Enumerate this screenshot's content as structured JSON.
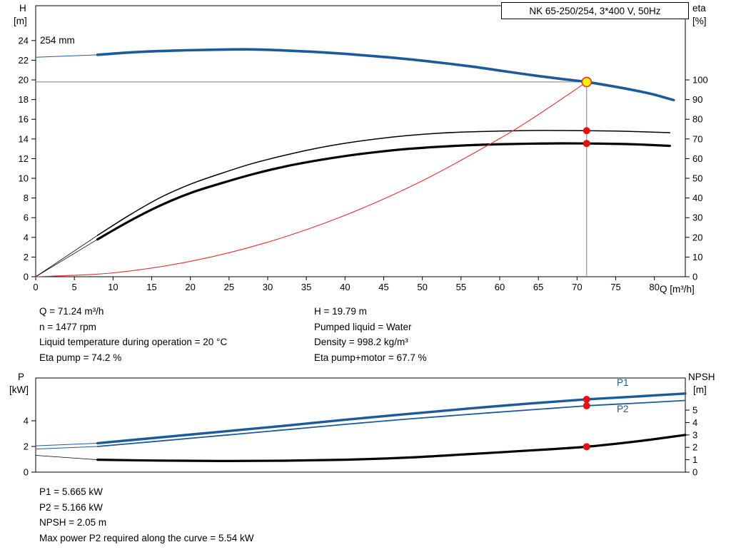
{
  "page": {
    "background": "#ffffff"
  },
  "chart_data": [
    {
      "type": "line",
      "title": "NK 65-250/254, 3*400 V, 50Hz",
      "impeller_label": "254 mm",
      "x_label": "Q [m³/h]",
      "y_left_label_1": "H",
      "y_left_label_2": "[m]",
      "y_right_label_1": "eta",
      "y_right_label_2": "[%]",
      "x_range": [
        0,
        84
      ],
      "y_left_range": [
        0,
        27.54
      ],
      "y_right_range": [
        0,
        137.7
      ],
      "x_ticks": [
        0,
        5,
        10,
        15,
        20,
        25,
        30,
        35,
        40,
        45,
        50,
        55,
        60,
        65,
        70,
        75,
        80
      ],
      "y_left_ticks": [
        0,
        2,
        4,
        6,
        8,
        10,
        12,
        14,
        16,
        18,
        20,
        22,
        24
      ],
      "y_right_ticks": [
        0,
        10,
        20,
        30,
        40,
        50,
        60,
        70,
        80,
        90,
        100
      ],
      "crosshair": {
        "q": 71.24,
        "h": 19.79,
        "color": "#7f7f7f"
      },
      "series": [
        {
          "name": "head-curve-254mm",
          "axis": "left",
          "color": "#1b5a9b",
          "width": 3.6,
          "points": [
            [
              8,
              22.55
            ],
            [
              12,
              22.78
            ],
            [
              16,
              22.93
            ],
            [
              20,
              23.02
            ],
            [
              24,
              23.08
            ],
            [
              28,
              23.1
            ],
            [
              32,
              23.0
            ],
            [
              36,
              22.85
            ],
            [
              40,
              22.65
            ],
            [
              44,
              22.4
            ],
            [
              48,
              22.12
            ],
            [
              52,
              21.78
            ],
            [
              56,
              21.4
            ],
            [
              60,
              20.95
            ],
            [
              64,
              20.5
            ],
            [
              68,
              20.1
            ],
            [
              71.24,
              19.79
            ],
            [
              75,
              19.3
            ],
            [
              78,
              18.85
            ],
            [
              80,
              18.5
            ],
            [
              82.5,
              17.95
            ]
          ]
        },
        {
          "name": "head-leader",
          "axis": "left",
          "color": "#1b5a9b",
          "width": 1,
          "straight": true,
          "points": [
            [
              0,
              22.3
            ],
            [
              8,
              22.55
            ]
          ]
        },
        {
          "name": "eta-pump-curve",
          "axis": "right",
          "color": "#000000",
          "width": 1.5,
          "points": [
            [
              8,
              21
            ],
            [
              12,
              31
            ],
            [
              16,
              40
            ],
            [
              20,
              47
            ],
            [
              24,
              52.5
            ],
            [
              28,
              57.5
            ],
            [
              32,
              61.5
            ],
            [
              36,
              65
            ],
            [
              40,
              67.8
            ],
            [
              44,
              70
            ],
            [
              48,
              71.7
            ],
            [
              52,
              72.9
            ],
            [
              56,
              73.6
            ],
            [
              60,
              74.0
            ],
            [
              64,
              74.3
            ],
            [
              68,
              74.3
            ],
            [
              71.24,
              74.2
            ],
            [
              75,
              74.0
            ],
            [
              78,
              73.7
            ],
            [
              82,
              73.2
            ]
          ]
        },
        {
          "name": "eta-pump-motor-curve",
          "axis": "right",
          "color": "#000000",
          "width": 3.2,
          "points": [
            [
              8,
              19
            ],
            [
              12,
              28
            ],
            [
              16,
              36
            ],
            [
              20,
              42.5
            ],
            [
              24,
              47.5
            ],
            [
              28,
              52
            ],
            [
              32,
              55.8
            ],
            [
              36,
              58.8
            ],
            [
              40,
              61.3
            ],
            [
              44,
              63.3
            ],
            [
              48,
              64.9
            ],
            [
              52,
              66.0
            ],
            [
              56,
              66.8
            ],
            [
              60,
              67.3
            ],
            [
              64,
              67.6
            ],
            [
              68,
              67.75
            ],
            [
              71.24,
              67.7
            ],
            [
              75,
              67.5
            ],
            [
              78,
              67.2
            ],
            [
              82,
              66.5
            ]
          ]
        },
        {
          "name": "eta-pump-leader",
          "axis": "right",
          "color": "#000000",
          "width": 0.8,
          "straight": true,
          "points": [
            [
              0,
              0
            ],
            [
              8,
              21
            ]
          ]
        },
        {
          "name": "eta-pump-motor-leader",
          "axis": "right",
          "color": "#000000",
          "width": 0.8,
          "straight": true,
          "points": [
            [
              0,
              0
            ],
            [
              8,
              19
            ]
          ]
        },
        {
          "name": "system-curve",
          "axis": "left",
          "color": "#e03131",
          "width": 1.1,
          "points": [
            [
              0,
              0
            ],
            [
              10,
              0.39
            ],
            [
              20,
              1.56
            ],
            [
              30,
              3.51
            ],
            [
              40,
              6.24
            ],
            [
              50,
              9.75
            ],
            [
              60,
              14.04
            ],
            [
              65,
              16.48
            ],
            [
              71.24,
              19.79
            ]
          ]
        }
      ],
      "markers": [
        {
          "name": "duty-point",
          "q": 71.24,
          "v": 19.79,
          "axis": "left",
          "r": 6.5,
          "fill": "#ffee00",
          "stroke": "#e03131"
        },
        {
          "name": "eta-pump-point",
          "q": 71.24,
          "v": 74.2,
          "axis": "right",
          "r": 5,
          "fill": "#e51010",
          "stroke": "none"
        },
        {
          "name": "eta-pump-motor-point",
          "q": 71.24,
          "v": 67.7,
          "axis": "right",
          "r": 5,
          "fill": "#e51010",
          "stroke": "none"
        }
      ]
    },
    {
      "type": "line",
      "y_left_label_1": "P",
      "y_left_label_2": "[kW]",
      "y_right_label_1": "NPSH",
      "y_right_label_2": "[m]",
      "x_range": [
        0,
        84
      ],
      "y_left_range": [
        0,
        7.33
      ],
      "y_right_range": [
        0,
        7.59
      ],
      "x_ticks": [],
      "y_left_ticks": [
        0,
        2,
        4
      ],
      "y_right_ticks": [
        0,
        1,
        2,
        3,
        4,
        5
      ],
      "curve_labels": {
        "p1": "P1",
        "p2": "P2"
      },
      "series": [
        {
          "name": "p1-curve",
          "axis": "left",
          "color": "#1b5a9b",
          "width": 3.4,
          "points": [
            [
              8,
              2.25
            ],
            [
              16,
              2.7
            ],
            [
              24,
              3.15
            ],
            [
              32,
              3.6
            ],
            [
              40,
              4.08
            ],
            [
              48,
              4.52
            ],
            [
              56,
              4.95
            ],
            [
              64,
              5.35
            ],
            [
              71.24,
              5.665
            ],
            [
              78,
              5.9
            ],
            [
              84,
              6.12
            ]
          ]
        },
        {
          "name": "p1-leader",
          "axis": "left",
          "color": "#1b5a9b",
          "width": 1,
          "straight": true,
          "points": [
            [
              0,
              2.05
            ],
            [
              8,
              2.25
            ]
          ]
        },
        {
          "name": "p2-curve",
          "axis": "left",
          "color": "#1b5a9b",
          "width": 1.8,
          "points": [
            [
              8,
              2.0
            ],
            [
              16,
              2.42
            ],
            [
              24,
              2.85
            ],
            [
              32,
              3.28
            ],
            [
              40,
              3.72
            ],
            [
              48,
              4.13
            ],
            [
              56,
              4.5
            ],
            [
              64,
              4.85
            ],
            [
              71.24,
              5.166
            ],
            [
              78,
              5.38
            ],
            [
              84,
              5.58
            ]
          ]
        },
        {
          "name": "p2-leader",
          "axis": "left",
          "color": "#1b5a9b",
          "width": 1,
          "straight": true,
          "points": [
            [
              0,
              1.8
            ],
            [
              8,
              2.0
            ]
          ]
        },
        {
          "name": "npsh-curve",
          "axis": "right",
          "color": "#000000",
          "width": 3.2,
          "points": [
            [
              8,
              1.0
            ],
            [
              16,
              0.93
            ],
            [
              24,
              0.9
            ],
            [
              32,
              0.92
            ],
            [
              40,
              1.0
            ],
            [
              48,
              1.17
            ],
            [
              56,
              1.45
            ],
            [
              64,
              1.75
            ],
            [
              71.24,
              2.05
            ],
            [
              78,
              2.5
            ],
            [
              84,
              3.0
            ]
          ]
        },
        {
          "name": "npsh-leader",
          "axis": "right",
          "color": "#000000",
          "width": 0.8,
          "straight": true,
          "points": [
            [
              0,
              1.35
            ],
            [
              8,
              1.0
            ]
          ]
        }
      ],
      "markers": [
        {
          "name": "p1-point",
          "q": 71.24,
          "v": 5.665,
          "axis": "left",
          "r": 5,
          "fill": "#e51010",
          "stroke": "none"
        },
        {
          "name": "p2-point",
          "q": 71.24,
          "v": 5.166,
          "axis": "left",
          "r": 5,
          "fill": "#e51010",
          "stroke": "none"
        },
        {
          "name": "npsh-point",
          "q": 71.24,
          "v": 2.05,
          "axis": "right",
          "r": 5,
          "fill": "#e51010",
          "stroke": "none"
        }
      ]
    }
  ],
  "info_top": {
    "left": [
      "Q = 71.24 m³/h",
      "n = 1477 rpm",
      "Liquid temperature during operation = 20 °C",
      "Eta pump = 74.2 %"
    ],
    "right": [
      "H = 19.79 m",
      "Pumped liquid = Water",
      "Density = 998.2 kg/m³",
      "Eta pump+motor = 67.7 %"
    ]
  },
  "info_bottom": [
    "P1 = 5.665 kW",
    "P2 = 5.166 kW",
    "NPSH = 2.05 m",
    "Max power P2 required along the curve = 5.54 kW"
  ]
}
